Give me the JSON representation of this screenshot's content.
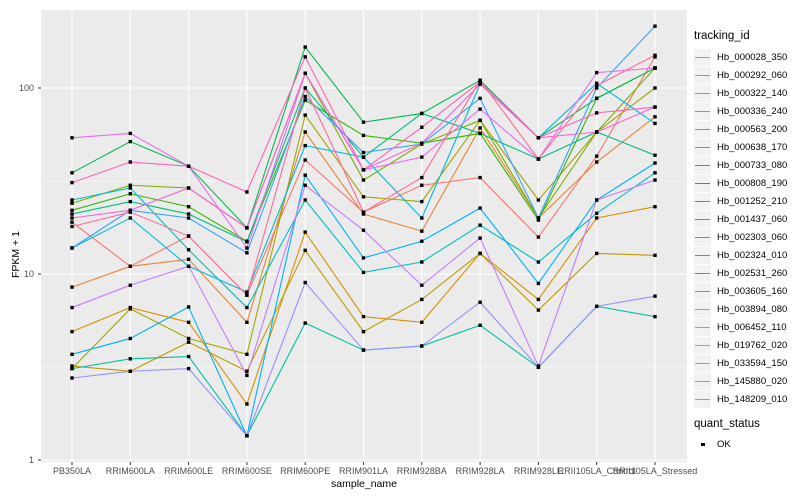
{
  "figure": {
    "y_axis_title": "FPKM + 1",
    "x_axis_title": "sample_name",
    "legend": {
      "title": "tracking_id"
    },
    "legend2": {
      "title": "quant_status",
      "items": [
        {
          "label": "OK",
          "marker": "black-square"
        }
      ]
    },
    "colors": {
      "panel_bg": "#EBEBEB",
      "grid": "#FFFFFF",
      "tick_mark": "#333333",
      "axis_text": "#4D4D4D",
      "title_text": "#000000",
      "legend_key_bg": "#F2F2F2",
      "point": "#000000"
    }
  },
  "chart_data": {
    "type": "line",
    "x_type": "categorical",
    "title": "",
    "xlabel": "sample_name",
    "ylabel": "FPKM + 1",
    "y_scale": "log10",
    "y_ticks": [
      1,
      10,
      100
    ],
    "y_tick_labels": [
      "1",
      "10",
      "100"
    ],
    "y_minor_ticks": [
      3.162,
      31.62
    ],
    "ylim": [
      1,
      260
    ],
    "grid": true,
    "legend_position": "right",
    "point_shape": "filled-square",
    "point_color": "#000000",
    "quant_status": "OK",
    "categories": [
      "PB350LA",
      "RRIM600LA",
      "RRIM600LE",
      "RRIM600SE",
      "RRIM600PE",
      "RRIM901LA",
      "RRIM928BA",
      "RRIM928LA",
      "RRIM928LE",
      "RRII105LA_Control",
      "RRII105LA_Stressed"
    ],
    "series": [
      {
        "name": "Hb_000028_350",
        "color": "#F8766D",
        "values": [
          19,
          11,
          16,
          7.7,
          41,
          21.5,
          30,
          33,
          15.8,
          43,
          147
        ]
      },
      {
        "name": "Hb_000292_060",
        "color": "#EA8331",
        "values": [
          8.5,
          11,
          12,
          5.5,
          58,
          21,
          17,
          61,
          20,
          40,
          70
        ]
      },
      {
        "name": "Hb_000322_140",
        "color": "#D89000",
        "values": [
          4.9,
          6.6,
          5.5,
          2.0,
          16.8,
          5.9,
          5.5,
          12.9,
          7.3,
          20,
          23
        ]
      },
      {
        "name": "Hb_000336_240",
        "color": "#C09B00",
        "values": [
          3.2,
          3.0,
          4.3,
          3.0,
          13.4,
          4.9,
          7.3,
          12.9,
          6.4,
          12.9,
          12.6
        ]
      },
      {
        "name": "Hb_000563_200",
        "color": "#A3A500",
        "values": [
          3.1,
          6.5,
          4.5,
          3.7,
          71.5,
          26,
          24.5,
          67,
          25,
          58,
          100
        ]
      },
      {
        "name": "Hb_000638_170",
        "color": "#7CAE00",
        "values": [
          24,
          30,
          29,
          17.7,
          120,
          32,
          50,
          67,
          20,
          58,
          128
        ]
      },
      {
        "name": "Hb_000733_080",
        "color": "#39B600",
        "values": [
          22,
          27,
          23,
          15,
          86,
          55.6,
          50.5,
          57,
          19.5,
          88,
          128
        ]
      },
      {
        "name": "Hb_000808_190",
        "color": "#00BB4E",
        "values": [
          35,
          51.5,
          38,
          17.7,
          166,
          65.5,
          73,
          110,
          54,
          88,
          128
        ]
      },
      {
        "name": "Hb_001252_210",
        "color": "#00BF7D",
        "values": [
          21,
          24.5,
          21,
          14.9,
          100,
          42.5,
          73,
          57,
          41.5,
          58,
          43.5
        ]
      },
      {
        "name": "Hb_001437_060",
        "color": "#00C1A3",
        "values": [
          3.1,
          3.5,
          3.6,
          1.35,
          5.45,
          3.9,
          4.1,
          5.3,
          3.15,
          6.7,
          5.9
        ]
      },
      {
        "name": "Hb_002303_060",
        "color": "#00BFC4",
        "values": [
          25,
          29,
          13.5,
          6.6,
          25,
          10.2,
          11.6,
          18.3,
          11.6,
          21.2,
          35
        ]
      },
      {
        "name": "Hb_002324_010",
        "color": "#00BAE0",
        "values": [
          13.8,
          20,
          11,
          8,
          49,
          42.5,
          20,
          105,
          54,
          106,
          64.5
        ]
      },
      {
        "name": "Hb_002531_260",
        "color": "#00B0F6",
        "values": [
          3.7,
          4.5,
          6.65,
          1.35,
          34,
          12.2,
          15,
          22.6,
          8.9,
          25,
          39.5
        ]
      },
      {
        "name": "Hb_003605_160",
        "color": "#35A2FF",
        "values": [
          13.8,
          22,
          20,
          13,
          90,
          45,
          50,
          88,
          20,
          100,
          215
        ]
      },
      {
        "name": "Hb_003894_080",
        "color": "#9590FF",
        "values": [
          2.76,
          3.0,
          3.1,
          1.35,
          9.0,
          3.9,
          4.1,
          7.05,
          3.15,
          6.7,
          7.6
        ]
      },
      {
        "name": "Hb_006452_110",
        "color": "#C77CFF",
        "values": [
          6.6,
          8.7,
          11,
          2.85,
          30,
          17.2,
          8.7,
          15.6,
          3.2,
          25,
          32
        ]
      },
      {
        "name": "Hb_019762_020",
        "color": "#E76BF3",
        "values": [
          54,
          57,
          38,
          13.8,
          120,
          36.3,
          42.5,
          77,
          41.5,
          121,
          128
        ]
      },
      {
        "name": "Hb_033594_150",
        "color": "#FA62DB",
        "values": [
          20,
          22,
          29,
          17.7,
          120,
          36.3,
          50.5,
          105,
          54,
          58,
          79
        ]
      },
      {
        "name": "Hb_145880_020",
        "color": "#FF62BC",
        "values": [
          31,
          40,
          38,
          27.6,
          147,
          36.3,
          61.5,
          108,
          54,
          73.5,
          79
        ]
      },
      {
        "name": "Hb_148209_010",
        "color": "#FF6A98",
        "values": [
          18,
          21.5,
          16,
          7.7,
          100,
          21.5,
          33,
          110,
          41.5,
          103,
          150
        ]
      }
    ]
  }
}
